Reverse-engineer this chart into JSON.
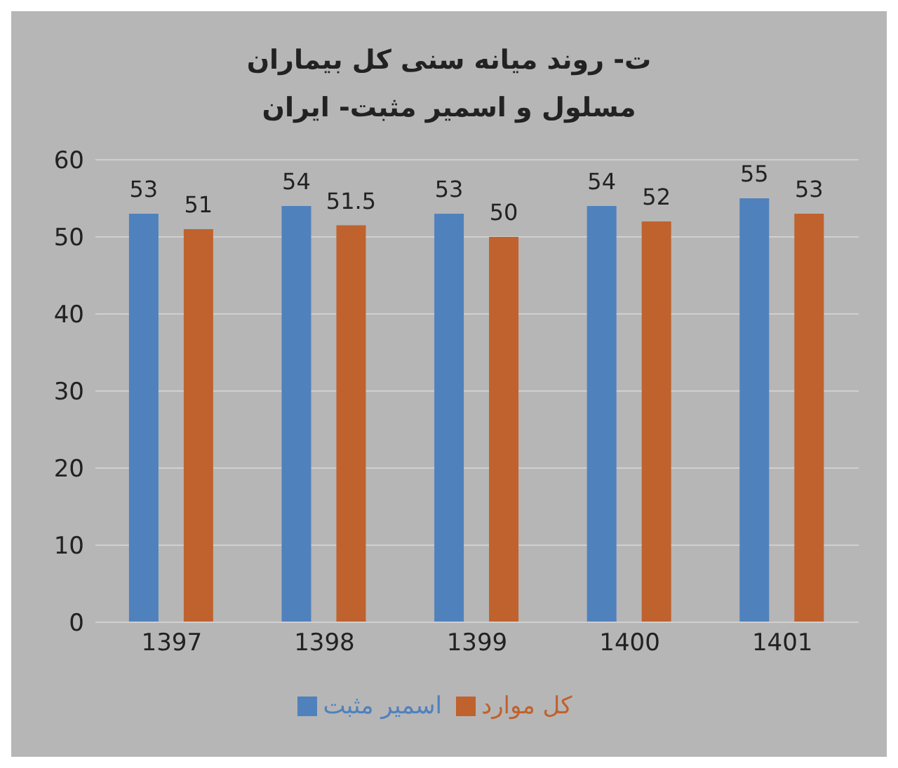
{
  "chart_data": {
    "type": "bar",
    "title": "ت- روند میانه سنی کل بیماران مسلول و اسمیر مثبت- ایران",
    "categories": [
      "1397",
      "1398",
      "1399",
      "1400",
      "1401"
    ],
    "series": [
      {
        "name": "اسمیر مثبت",
        "color": "#4f81bd",
        "values": [
          53,
          54,
          53,
          54,
          55
        ]
      },
      {
        "name": "کل موارد",
        "color": "#c0622d",
        "values": [
          51,
          51.5,
          50,
          52,
          53
        ]
      }
    ],
    "ylim": [
      0,
      60
    ],
    "yticks": [
      0,
      10,
      20,
      30,
      40,
      50,
      60
    ],
    "grid": "y",
    "legend": "bottom",
    "data_labels": true
  }
}
